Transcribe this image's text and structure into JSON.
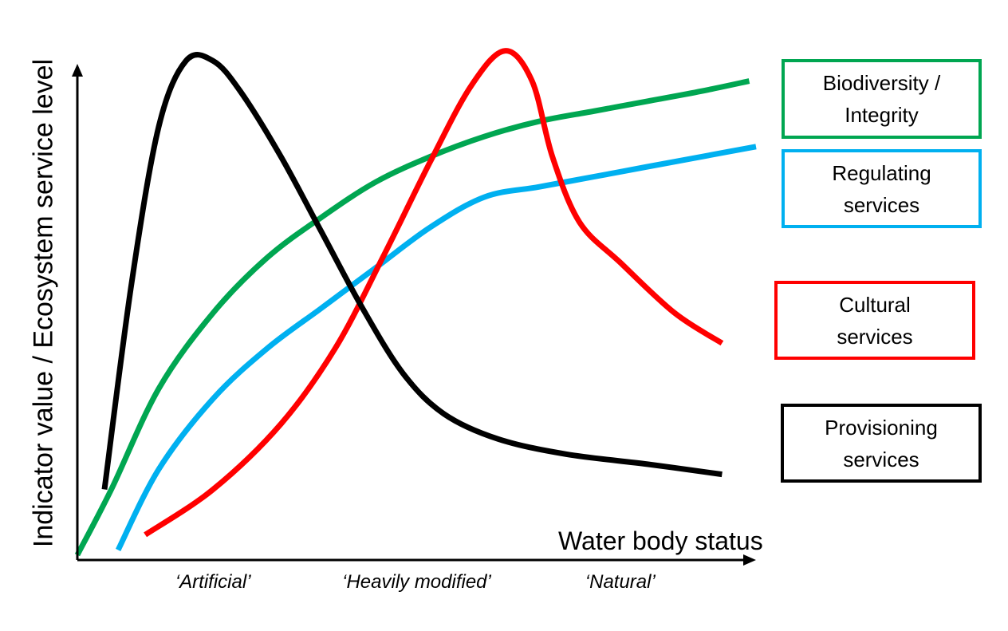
{
  "chart_data": {
    "type": "line",
    "title": "",
    "xlabel": "Water body status",
    "ylabel": "Indicator value / Ecosystem service level",
    "x_categories": [
      "‘Artificial’",
      "‘Heavily modified’",
      "‘Natural’"
    ],
    "x_category_positions": [
      0.2,
      0.5,
      0.8
    ],
    "xlim": [
      0,
      1
    ],
    "ylim": [
      0,
      1
    ],
    "axis_ticks_numeric": false,
    "grid": false,
    "legend_placement": "right",
    "series": [
      {
        "name": "Biodiversity / Integrity",
        "color": "#00a651",
        "x": [
          0.0,
          0.05,
          0.12,
          0.2,
          0.28,
          0.36,
          0.44,
          0.52,
          0.6,
          0.68,
          0.76,
          0.84,
          0.92,
          0.99
        ],
        "y": [
          0.01,
          0.14,
          0.34,
          0.49,
          0.6,
          0.68,
          0.75,
          0.8,
          0.84,
          0.87,
          0.89,
          0.91,
          0.93,
          0.95
        ]
      },
      {
        "name": "Regulating services",
        "color": "#00b0f0",
        "x": [
          0.06,
          0.12,
          0.2,
          0.28,
          0.36,
          0.44,
          0.52,
          0.6,
          0.68,
          0.76,
          0.84,
          0.92,
          1.0
        ],
        "y": [
          0.02,
          0.18,
          0.32,
          0.42,
          0.5,
          0.58,
          0.66,
          0.72,
          0.74,
          0.76,
          0.78,
          0.8,
          0.82
        ]
      },
      {
        "name": "Cultural services",
        "color": "#ff0000",
        "x": [
          0.1,
          0.2,
          0.3,
          0.38,
          0.45,
          0.52,
          0.58,
          0.63,
          0.67,
          0.7,
          0.74,
          0.8,
          0.88,
          0.95
        ],
        "y": [
          0.05,
          0.14,
          0.27,
          0.42,
          0.6,
          0.79,
          0.94,
          1.01,
          0.95,
          0.8,
          0.67,
          0.59,
          0.49,
          0.43
        ]
      },
      {
        "name": "Provisioning services",
        "color": "#000000",
        "x": [
          0.04,
          0.08,
          0.12,
          0.16,
          0.2,
          0.24,
          0.3,
          0.36,
          0.42,
          0.48,
          0.54,
          0.62,
          0.72,
          0.84,
          0.95
        ],
        "y": [
          0.14,
          0.55,
          0.86,
          0.99,
          0.99,
          0.93,
          0.8,
          0.65,
          0.5,
          0.37,
          0.29,
          0.24,
          0.21,
          0.19,
          0.17
        ]
      }
    ]
  },
  "legend": {
    "biodiversity": [
      "Biodiversity /",
      "Integrity"
    ],
    "regulating": [
      "Regulating",
      "services"
    ],
    "cultural": [
      "Cultural",
      "services"
    ],
    "provisioning": [
      "Provisioning",
      "services"
    ]
  },
  "colors": {
    "biodiversity": "#00a651",
    "regulating": "#00b0f0",
    "cultural": "#ff0000",
    "provisioning": "#000000",
    "axis": "#000000"
  }
}
